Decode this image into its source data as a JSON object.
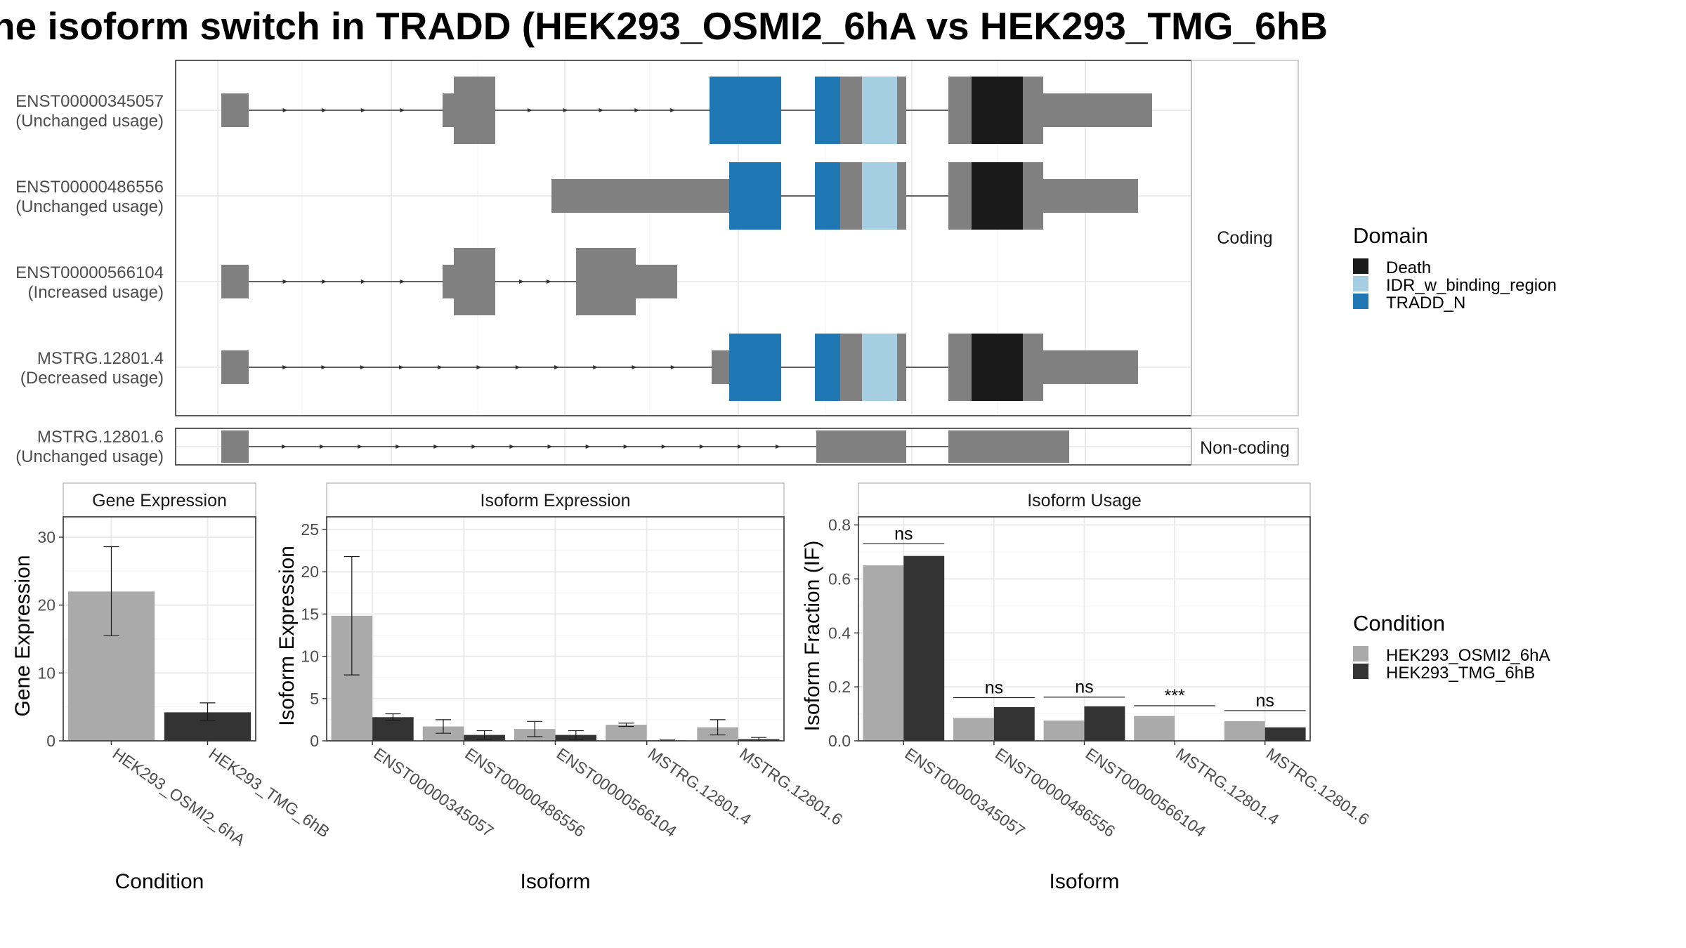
{
  "title": "he isoform switch in TRADD (HEK293_OSMI2_6hA vs HEK293_TMG_6hB",
  "colors": {
    "exon": "#808080",
    "Death": "#1A1A1A",
    "IDR_w_binding_region": "#A6CEE3",
    "TRADD_N": "#1F78B4",
    "HEK293_OSMI2_6hA": "#AAAAAA",
    "HEK293_TMG_6hB": "#333333",
    "frame": "#333333",
    "strip_frame": "#BBBBBB",
    "grid": "#EBEBEB"
  },
  "structure": {
    "facets": [
      {
        "label": "Coding",
        "transcripts": [
          {
            "id": "ENST00000345057",
            "usage": "(Unchanged usage)"
          },
          {
            "id": "ENST00000486556",
            "usage": "(Unchanged usage)"
          },
          {
            "id": "ENST00000566104",
            "usage": "(Increased usage)"
          },
          {
            "id": "MSTRG.12801.4",
            "usage": "(Decreased usage)"
          }
        ]
      },
      {
        "label": "Non-coding",
        "transcripts": [
          {
            "id": "MSTRG.12801.6",
            "usage": "(Unchanged usage)"
          }
        ]
      }
    ]
  },
  "legend_domain": {
    "title": "Domain",
    "items": [
      "Death",
      "IDR_w_binding_region",
      "TRADD_N"
    ]
  },
  "legend_condition": {
    "title": "Condition",
    "items": [
      "HEK293_OSMI2_6hA",
      "HEK293_TMG_6hB"
    ]
  },
  "chart_data": [
    {
      "type": "bar",
      "panel_title": "Gene Expression",
      "xlabel": "Condition",
      "ylabel": "Gene Expression",
      "categories": [
        "HEK293_OSMI2_6hA",
        "HEK293_TMG_6hB"
      ],
      "values": [
        22.0,
        4.2
      ],
      "errors": [
        [
          15.5,
          28.6
        ],
        [
          3.0,
          5.6
        ]
      ],
      "ylim": [
        0,
        33
      ],
      "yticks": [
        0,
        10,
        20,
        30
      ],
      "grid": true
    },
    {
      "type": "bar",
      "panel_title": "Isoform Expression",
      "xlabel": "Isoform",
      "ylabel": "Isoform Expression",
      "categories": [
        "ENST00000345057",
        "ENST00000486556",
        "ENST00000566104",
        "MSTRG.12801.4",
        "MSTRG.12801.6"
      ],
      "series": [
        {
          "name": "HEK293_OSMI2_6hA",
          "values": [
            14.8,
            1.7,
            1.4,
            1.9,
            1.6
          ],
          "errors": [
            [
              7.8,
              21.8
            ],
            [
              0.9,
              2.5
            ],
            [
              0.5,
              2.3
            ],
            [
              1.7,
              2.1
            ],
            [
              0.7,
              2.5
            ]
          ]
        },
        {
          "name": "HEK293_TMG_6hB",
          "values": [
            2.8,
            0.7,
            0.7,
            0.05,
            0.2
          ],
          "errors": [
            [
              2.4,
              3.2
            ],
            [
              0.2,
              1.2
            ],
            [
              0.2,
              1.2
            ],
            [
              0.0,
              0.1
            ],
            [
              0.0,
              0.4
            ]
          ]
        }
      ],
      "ylim": [
        0,
        26.5
      ],
      "yticks": [
        0,
        5,
        10,
        15,
        20,
        25
      ],
      "grid": true
    },
    {
      "type": "bar",
      "panel_title": "Isoform Usage",
      "xlabel": "Isoform",
      "ylabel": "Isoform Fraction (IF)",
      "categories": [
        "ENST00000345057",
        "ENST00000486556",
        "ENST00000566104",
        "MSTRG.12801.4",
        "MSTRG.12801.6"
      ],
      "series": [
        {
          "name": "HEK293_OSMI2_6hA",
          "values": [
            0.65,
            0.085,
            0.075,
            0.092,
            0.073
          ]
        },
        {
          "name": "HEK293_TMG_6hB",
          "values": [
            0.685,
            0.125,
            0.128,
            0.0,
            0.05
          ]
        }
      ],
      "significance": [
        {
          "label": "ns",
          "level": 0.73
        },
        {
          "label": "ns",
          "level": 0.16
        },
        {
          "label": "ns",
          "level": 0.162
        },
        {
          "label": "***",
          "level": 0.13
        },
        {
          "label": "ns",
          "level": 0.112
        }
      ],
      "ylim": [
        0,
        0.83
      ],
      "yticks": [
        "0.0",
        "0.2",
        "0.4",
        "0.6",
        "0.8"
      ],
      "grid": true
    }
  ]
}
